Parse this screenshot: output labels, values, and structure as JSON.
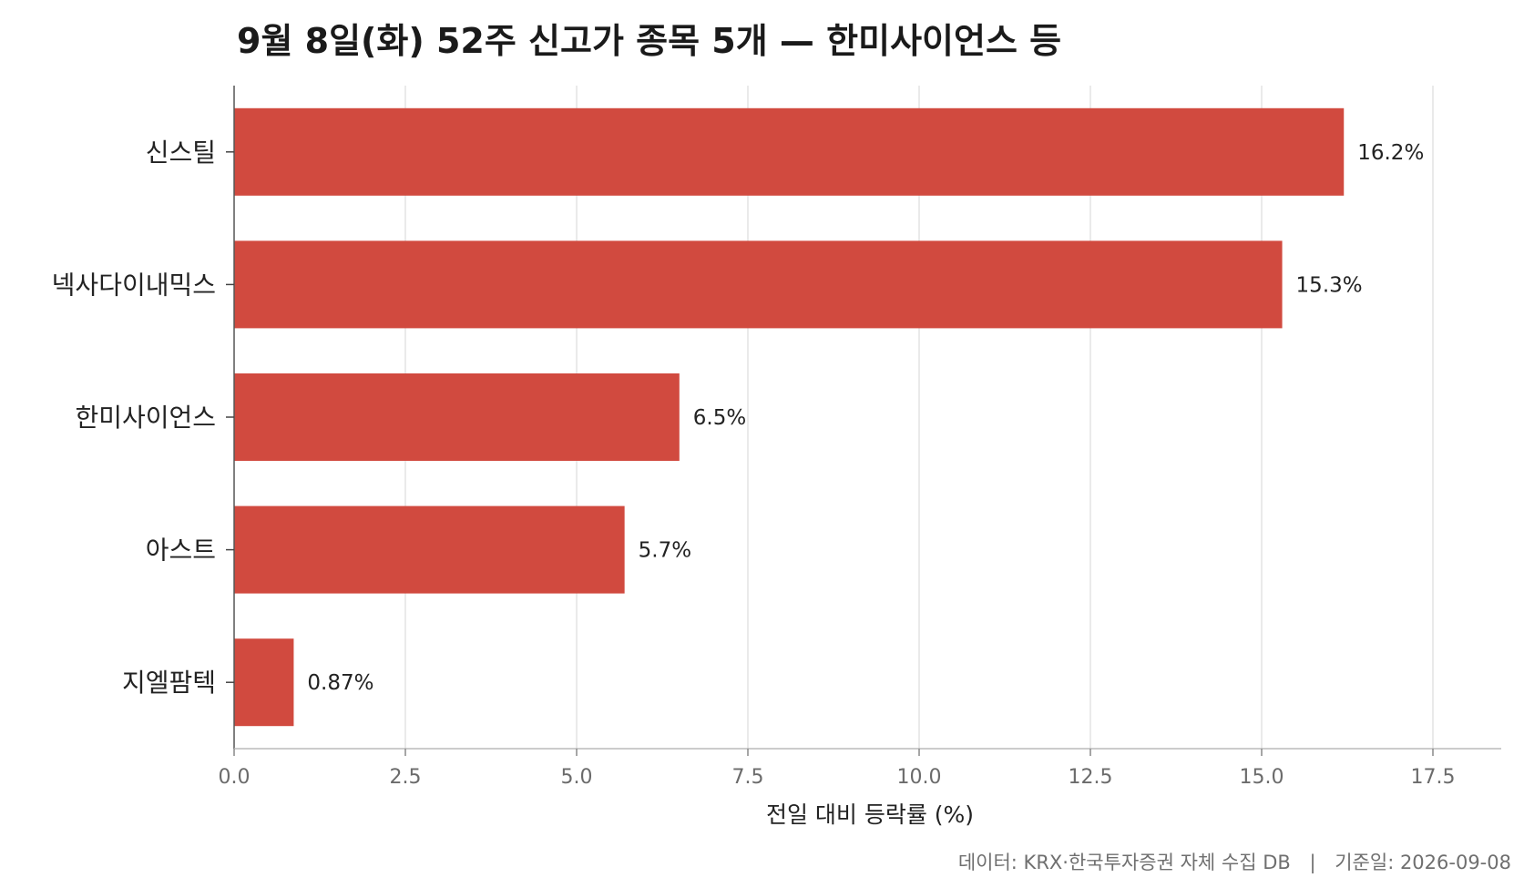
{
  "title": "9월 8일(화) 52주 신고가 종목 5개 — 한미사이언스 등",
  "chart_data": {
    "type": "bar",
    "orientation": "horizontal",
    "title": "9월 8일(화) 52주 신고가 종목 5개 — 한미사이언스 등",
    "xlabel": "전일 대비 등락률 (%)",
    "ylabel": "",
    "xlim": [
      0,
      18.5
    ],
    "xticks": [
      0.0,
      2.5,
      5.0,
      7.5,
      10.0,
      12.5,
      15.0,
      17.5
    ],
    "xtick_labels": [
      "0.0",
      "2.5",
      "5.0",
      "7.5",
      "10.0",
      "12.5",
      "15.0",
      "17.5"
    ],
    "grid": "vertical",
    "bar_color": "#d14a3f",
    "categories": [
      "신스틸",
      "넥사다이내믹스",
      "한미사이언스",
      "아스트",
      "지엘팜텍"
    ],
    "values": [
      16.2,
      15.3,
      6.5,
      5.7,
      0.87
    ],
    "data_labels": [
      "16.2%",
      "15.3%",
      "6.5%",
      "5.7%",
      "0.87%"
    ]
  },
  "footer": {
    "source": "데이터: KRX·한국투자증권 자체 수집 DB",
    "separator": "|",
    "date": "기준일: 2026-09-08"
  }
}
